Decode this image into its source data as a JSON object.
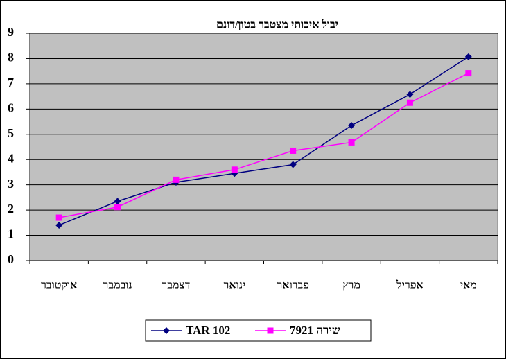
{
  "chart_data": {
    "type": "line",
    "title": "יבול איכותי מצטבר בטון/דונם",
    "categories": [
      "אוקטובר",
      "נובמבר",
      "דצמבר",
      "ינואר",
      "פברואר",
      "מרץ",
      "אפריל",
      "מאי"
    ],
    "series": [
      {
        "name": "TAR 102",
        "color": "#000080",
        "marker": "diamond",
        "values": [
          1.4,
          2.35,
          3.1,
          3.45,
          3.8,
          5.35,
          6.58,
          8.07
        ]
      },
      {
        "name": "שירה 7921",
        "color": "#ff00ff",
        "marker": "square",
        "values": [
          1.7,
          2.12,
          3.2,
          3.6,
          4.35,
          4.68,
          6.25,
          7.42
        ]
      }
    ],
    "ylim": [
      0,
      9
    ],
    "yticks": [
      0,
      1,
      2,
      3,
      4,
      5,
      6,
      7,
      8,
      9
    ],
    "grid": true,
    "legend": "bottom",
    "plot_background": "#c0c0c0"
  }
}
